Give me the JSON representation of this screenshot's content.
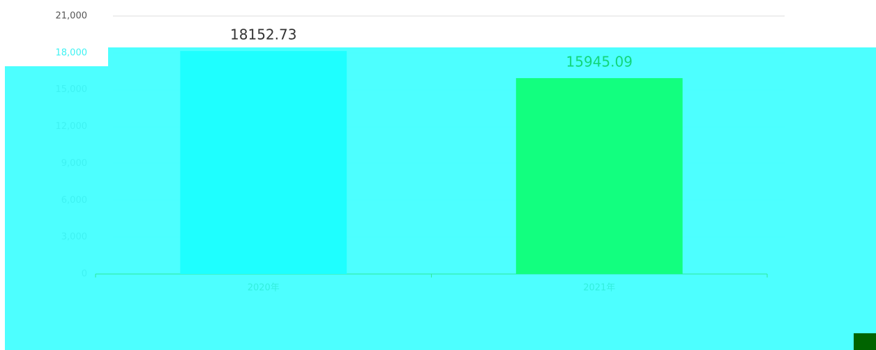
{
  "chart_data": {
    "type": "bar",
    "categories": [
      "2020年",
      "2021年"
    ],
    "values": [
      18152.73,
      15945.09
    ],
    "colors": [
      "#1effff",
      "#12ff7f"
    ],
    "ylim": [
      0,
      21000
    ],
    "yticks": [
      0,
      {
        "value": 3000,
        "label": "3,000"
      },
      {
        "value": 6000,
        "label": "6,000"
      },
      {
        "value": 9000,
        "label": "9,000"
      },
      {
        "value": 12000,
        "label": "12,000"
      },
      {
        "value": 15000,
        "label": "15,000"
      },
      {
        "value": 18000,
        "label": "18,000"
      },
      {
        "value": 21000,
        "label": "21,000"
      }
    ],
    "grid": true
  }
}
